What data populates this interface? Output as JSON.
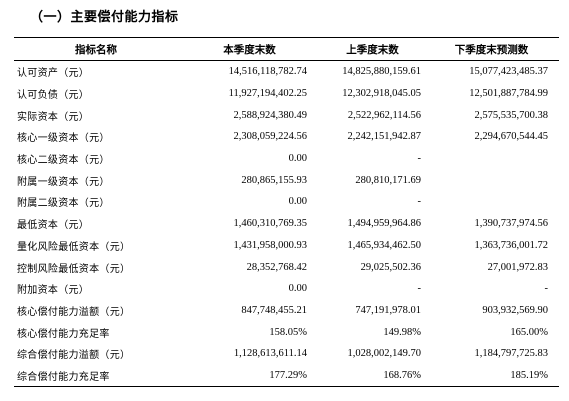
{
  "section": {
    "title": "（一）主要偿付能力指标"
  },
  "table": {
    "headers": [
      "指标名称",
      "本季度末数",
      "上季度末数",
      "下季度末预测数"
    ],
    "rows": [
      [
        "认可资产（元）",
        "14,516,118,782.74",
        "14,825,880,159.61",
        "15,077,423,485.37"
      ],
      [
        "认可负债（元）",
        "11,927,194,402.25",
        "12,302,918,045.05",
        "12,501,887,784.99"
      ],
      [
        "实际资本（元）",
        "2,588,924,380.49",
        "2,522,962,114.56",
        "2,575,535,700.38"
      ],
      [
        "核心一级资本（元）",
        "2,308,059,224.56",
        "2,242,151,942.87",
        "2,294,670,544.45"
      ],
      [
        "核心二级资本（元）",
        "0.00",
        "-",
        ""
      ],
      [
        "附属一级资本（元）",
        "280,865,155.93",
        "280,810,171.69",
        ""
      ],
      [
        "附属二级资本（元）",
        "0.00",
        "-",
        ""
      ],
      [
        "最低资本（元）",
        "1,460,310,769.35",
        "1,494,959,964.86",
        "1,390,737,974.56"
      ],
      [
        "量化风险最低资本（元）",
        "1,431,958,000.93",
        "1,465,934,462.50",
        "1,363,736,001.72"
      ],
      [
        "控制风险最低资本（元）",
        "28,352,768.42",
        "29,025,502.36",
        "27,001,972.83"
      ],
      [
        "附加资本（元）",
        "0.00",
        "-",
        "-"
      ],
      [
        "核心偿付能力溢额（元）",
        "847,748,455.21",
        "747,191,978.01",
        "903,932,569.90"
      ],
      [
        "核心偿付能力充足率",
        "158.05%",
        "149.98%",
        "165.00%"
      ],
      [
        "综合偿付能力溢额（元）",
        "1,128,613,611.14",
        "1,028,002,149.70",
        "1,184,797,725.83"
      ],
      [
        "综合偿付能力充足率",
        "177.29%",
        "168.76%",
        "185.19%"
      ]
    ]
  }
}
